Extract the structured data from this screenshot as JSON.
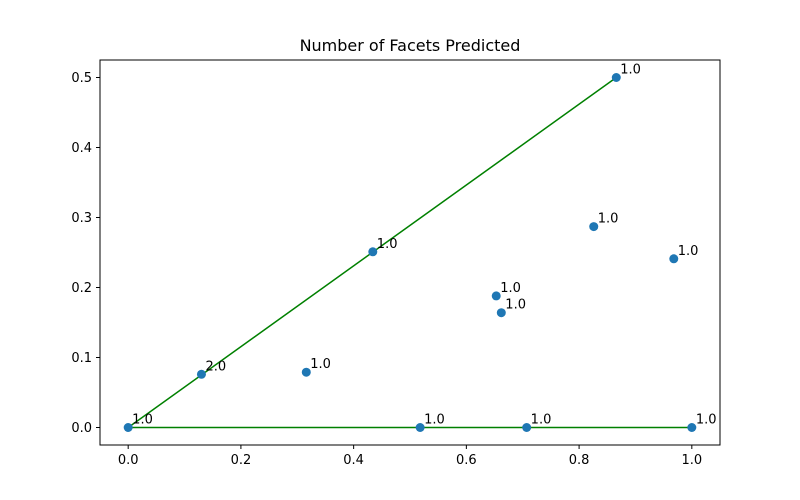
{
  "chart_data": {
    "type": "scatter",
    "title": "Number of Facets Predicted",
    "xlabel": "",
    "ylabel": "",
    "xlim": [
      -0.05,
      1.05
    ],
    "ylim": [
      -0.025,
      0.525
    ],
    "xticks": [
      0.0,
      0.2,
      0.4,
      0.6,
      0.8,
      1.0
    ],
    "xtick_labels": [
      "0.0",
      "0.2",
      "0.4",
      "0.6",
      "0.8",
      "1.0"
    ],
    "yticks": [
      0.0,
      0.1,
      0.2,
      0.3,
      0.4,
      0.5
    ],
    "ytick_labels": [
      "0.0",
      "0.1",
      "0.2",
      "0.3",
      "0.4",
      "0.5"
    ],
    "grid": false,
    "point_color": "#1f77b4",
    "line_color": "#008000",
    "lines": [
      {
        "x": [
          0.0,
          0.866
        ],
        "y": [
          0.0,
          0.5
        ]
      },
      {
        "x": [
          0.0,
          1.0
        ],
        "y": [
          0.0,
          0.0
        ]
      }
    ],
    "points": [
      {
        "x": 0.0,
        "y": 0.0,
        "label": "1.0"
      },
      {
        "x": 0.13,
        "y": 0.076,
        "label": "2.0"
      },
      {
        "x": 0.316,
        "y": 0.079,
        "label": "1.0"
      },
      {
        "x": 0.434,
        "y": 0.251,
        "label": "1.0"
      },
      {
        "x": 0.653,
        "y": 0.188,
        "label": "1.0"
      },
      {
        "x": 0.662,
        "y": 0.164,
        "label": "1.0"
      },
      {
        "x": 0.826,
        "y": 0.287,
        "label": "1.0"
      },
      {
        "x": 0.968,
        "y": 0.241,
        "label": "1.0"
      },
      {
        "x": 0.866,
        "y": 0.5,
        "label": "1.0"
      },
      {
        "x": 0.518,
        "y": 0.0,
        "label": "1.0"
      },
      {
        "x": 0.707,
        "y": 0.0,
        "label": "1.0"
      },
      {
        "x": 1.0,
        "y": 0.0,
        "label": "1.0"
      }
    ]
  }
}
